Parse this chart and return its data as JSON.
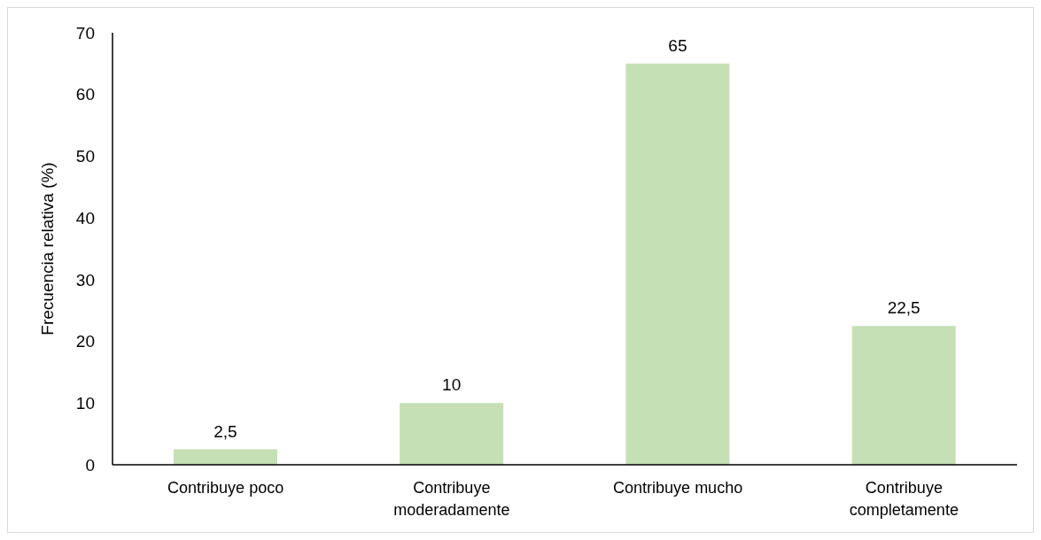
{
  "chart_data": {
    "type": "bar",
    "ylabel": "Frecuencia relativa (%)",
    "categories": [
      "Contribuye poco",
      "Contribuye moderadamente",
      "Contribuye mucho",
      "Contribuye completamente"
    ],
    "values": [
      2.5,
      10,
      65,
      22.5
    ],
    "color": "#c5e0b4",
    "value_labels": [
      "2,5",
      "10",
      "65",
      "22,5"
    ],
    "ylim": [
      0,
      70
    ],
    "yticks": [
      0,
      10,
      20,
      30,
      40,
      50,
      60,
      70
    ]
  }
}
